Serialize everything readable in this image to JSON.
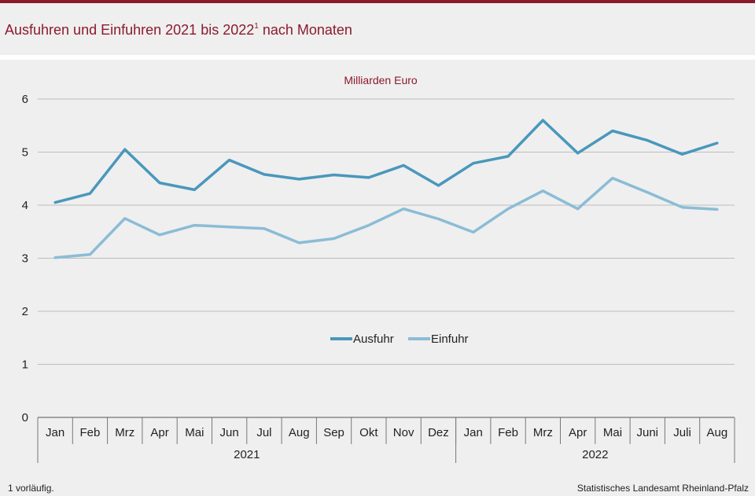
{
  "header": {
    "title": "Ausfuhren und Einfuhren 2021 bis 2022",
    "title_sup": "1",
    "title_suffix": " nach Monaten"
  },
  "footer": {
    "footnote": "1 vorläufig.",
    "source": "Statistisches Landesamt Rheinland-Pfalz"
  },
  "colors": {
    "accent": "#8b1a2e",
    "ausfuhr": "#4a97bc",
    "einfuhr": "#8bbcd6",
    "grid": "#bdbdbd",
    "panel": "#efefef"
  },
  "chart_data": {
    "type": "line",
    "unit_label": "Milliarden Euro",
    "categories": [
      "Jan",
      "Feb",
      "Mrz",
      "Apr",
      "Mai",
      "Jun",
      "Jul",
      "Aug",
      "Sep",
      "Okt",
      "Nov",
      "Dez",
      "Jan",
      "Feb",
      "Mrz",
      "Apr",
      "Mai",
      "Juni",
      "Juli",
      "Aug"
    ],
    "years": [
      {
        "label": "2021",
        "start": 0,
        "end": 11
      },
      {
        "label": "2022",
        "start": 12,
        "end": 19
      }
    ],
    "series": [
      {
        "name": "Ausfuhr",
        "values": [
          4.05,
          4.22,
          5.05,
          4.42,
          4.29,
          4.85,
          4.58,
          4.49,
          4.57,
          4.52,
          4.75,
          4.37,
          4.79,
          4.92,
          5.6,
          4.98,
          5.4,
          5.22,
          4.96,
          5.17
        ]
      },
      {
        "name": "Einfuhr",
        "values": [
          3.01,
          3.07,
          3.75,
          3.44,
          3.62,
          3.59,
          3.56,
          3.29,
          3.37,
          3.62,
          3.93,
          3.74,
          3.49,
          3.93,
          4.27,
          3.93,
          4.51,
          4.24,
          3.96,
          3.92
        ]
      }
    ],
    "ylim": [
      0,
      6
    ],
    "yticks": [
      0,
      1,
      2,
      3,
      4,
      5,
      6
    ],
    "grid": true,
    "legend_position": "center"
  }
}
